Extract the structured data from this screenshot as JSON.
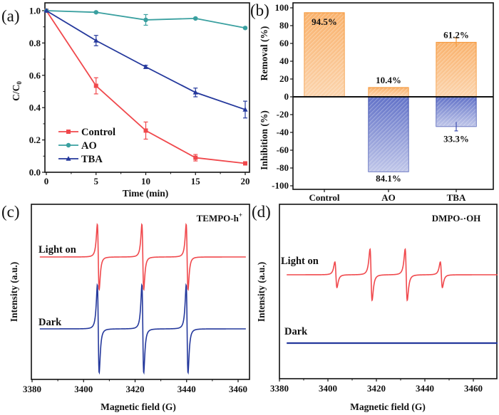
{
  "chart_data": [
    {
      "panel": "(a)",
      "type": "line",
      "title": "",
      "xlabel": "Time (min)",
      "ylabel": "C/C0",
      "ylabel_main": "C/C",
      "ylabel_sub": "0",
      "xlim": [
        0,
        20.5
      ],
      "ylim": [
        0.0,
        1.02
      ],
      "x": [
        0,
        5,
        10,
        15,
        20
      ],
      "xticks": [
        "0",
        "5",
        "10",
        "15",
        "20"
      ],
      "yticks": [
        "0.0",
        "0.2",
        "0.4",
        "0.6",
        "0.8",
        "1.0"
      ],
      "grid": false,
      "legend_position": "bottom-left",
      "series": [
        {
          "name": "Control",
          "color": "#f0484c",
          "marker": "square",
          "values": [
            1.0,
            0.535,
            0.258,
            0.09,
            0.055
          ],
          "errors": [
            0.0,
            0.05,
            0.053,
            0.02,
            0.005
          ]
        },
        {
          "name": "AO",
          "color": "#3aa0a0",
          "marker": "circle",
          "values": [
            1.0,
            0.99,
            0.943,
            0.952,
            0.893
          ],
          "errors": [
            0.0,
            0.005,
            0.033,
            0.005,
            0.006
          ]
        },
        {
          "name": "TBA",
          "color": "#24389c",
          "marker": "triangle",
          "values": [
            1.0,
            0.815,
            0.652,
            0.494,
            0.388
          ],
          "errors": [
            0.0,
            0.032,
            0.01,
            0.027,
            0.052
          ]
        }
      ]
    },
    {
      "panel": "(b)",
      "type": "bar",
      "title": "",
      "xlabel": "",
      "ylabel_top": "Removal (%)",
      "ylabel_bottom": "Inhibition (%)",
      "ylim": [
        -100,
        100
      ],
      "yticks": [
        "100",
        "80",
        "60",
        "40",
        "20",
        "0",
        "-20",
        "-40",
        "-60",
        "-80",
        "-100"
      ],
      "categories": [
        "Control",
        "AO",
        "TBA"
      ],
      "grid": false,
      "series": [
        {
          "name": "Removal",
          "color": "#f7a24f",
          "values": [
            94.5,
            10.4,
            61.2
          ],
          "errors": [
            0,
            0,
            5
          ],
          "labels": [
            "94.5%",
            "10.4%",
            "61.2%"
          ]
        },
        {
          "name": "Inhibition",
          "color": "#4d5fbf",
          "values": [
            0,
            -84.1,
            -33.3
          ],
          "errors": [
            0,
            0,
            5
          ],
          "labels": [
            "",
            "84.1%",
            "33.3%"
          ]
        }
      ]
    },
    {
      "panel": "(c)",
      "type": "line",
      "title": "",
      "annotation": "TEMPO-h",
      "annotation_sup": "+",
      "xlabel": "Magnetic field (G)",
      "ylabel": "Intensity (a.u.)",
      "xlim": [
        3380,
        3463
      ],
      "xticks": [
        "3380",
        "3400",
        "3420",
        "3440",
        "3460"
      ],
      "grid": false,
      "signal": {
        "type": "triplet",
        "centers_G": [
          3405.7,
          3423.0,
          3440.2
        ],
        "range_G": [
          3383,
          3463
        ]
      },
      "series": [
        {
          "name": "Light on",
          "color": "#f0484c",
          "relative_amplitude": 0.68
        },
        {
          "name": "Dark",
          "color": "#24389c",
          "relative_amplitude": 0.9
        }
      ]
    },
    {
      "panel": "(d)",
      "type": "line",
      "title": "",
      "annotation": "DMPO-·OH",
      "xlabel": "Magnetic field (G)",
      "ylabel": "Intensity (a.u.)",
      "xlim": [
        3380,
        3470
      ],
      "xticks": [
        "3380",
        "3400",
        "3420",
        "3440",
        "3460"
      ],
      "grid": false,
      "signal": {
        "type": "quartet 1:2:2:1",
        "centers_G": [
          3403.3,
          3417.8,
          3432.3,
          3446.8
        ],
        "range_G": [
          3383,
          3470
        ]
      },
      "series": [
        {
          "name": "Light on",
          "color": "#f0484c",
          "relative_amplitudes": [
            0.5,
            1.0,
            1.0,
            0.5
          ]
        },
        {
          "name": "Dark",
          "color": "#24389c",
          "relative_amplitudes": [
            0,
            0,
            0,
            0
          ]
        }
      ]
    }
  ]
}
